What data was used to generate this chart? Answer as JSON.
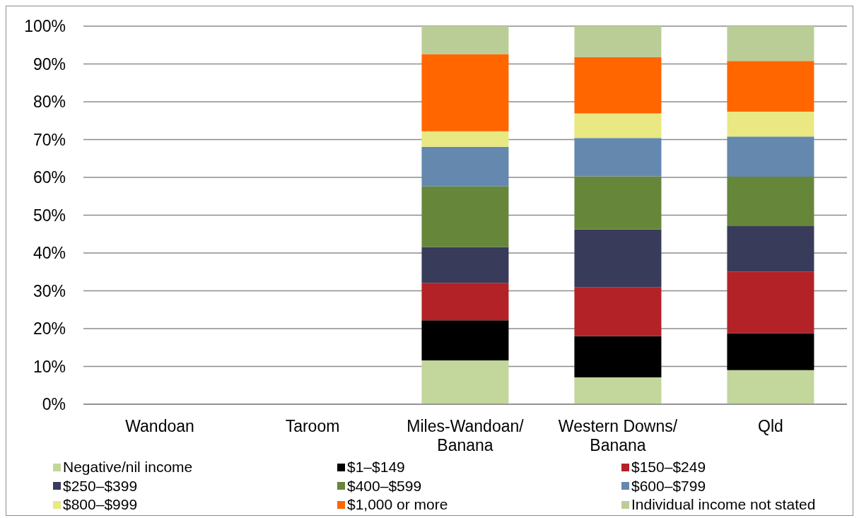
{
  "chart_data": {
    "type": "bar",
    "stacked": true,
    "categories": [
      "Wandoan",
      "Taroom",
      "Miles-Wandoan/Banana",
      "Western Downs/Banana",
      "Qld"
    ],
    "series": [
      {
        "name": "Negative/nil income",
        "color": "#c3d69b",
        "values": [
          null,
          null,
          11.6,
          7.1,
          9.0
        ]
      },
      {
        "name": "$1–$149",
        "color": "#000000",
        "values": [
          null,
          null,
          10.6,
          10.9,
          9.8
        ]
      },
      {
        "name": "$150–$249",
        "color": "#b22226",
        "values": [
          null,
          null,
          9.9,
          13.0,
          16.3
        ]
      },
      {
        "name": "$250–$399",
        "color": "#383b5a",
        "values": [
          null,
          null,
          9.5,
          15.2,
          12.0
        ]
      },
      {
        "name": "$400–$599",
        "color": "#66863a",
        "values": [
          null,
          null,
          16.0,
          14.1,
          13.1
        ]
      },
      {
        "name": "$600–$799",
        "color": "#6488ae",
        "values": [
          null,
          null,
          10.5,
          10.1,
          10.6
        ]
      },
      {
        "name": "$800–$999",
        "color": "#e9e882",
        "values": [
          null,
          null,
          4.1,
          6.5,
          6.6
        ]
      },
      {
        "name": "$1,000 or more",
        "color": "#ff6600",
        "values": [
          null,
          null,
          20.4,
          14.9,
          13.4
        ]
      },
      {
        "name": "Individual income not stated",
        "color": "#bacd96",
        "values": [
          null,
          null,
          7.4,
          8.2,
          9.2
        ]
      }
    ],
    "ylim": [
      0,
      100
    ],
    "yticks": [
      {
        "value": 0,
        "label": "0%"
      },
      {
        "value": 10,
        "label": "10%"
      },
      {
        "value": 20,
        "label": "20%"
      },
      {
        "value": 30,
        "label": "30%"
      },
      {
        "value": 40,
        "label": "40%"
      },
      {
        "value": 50,
        "label": "50%"
      },
      {
        "value": 60,
        "label": "60%"
      },
      {
        "value": 70,
        "label": "70%"
      },
      {
        "value": 80,
        "label": "80%"
      },
      {
        "value": 90,
        "label": "90%"
      },
      {
        "value": 100,
        "label": "100%"
      }
    ],
    "grid": "y",
    "legend": "bottom"
  }
}
